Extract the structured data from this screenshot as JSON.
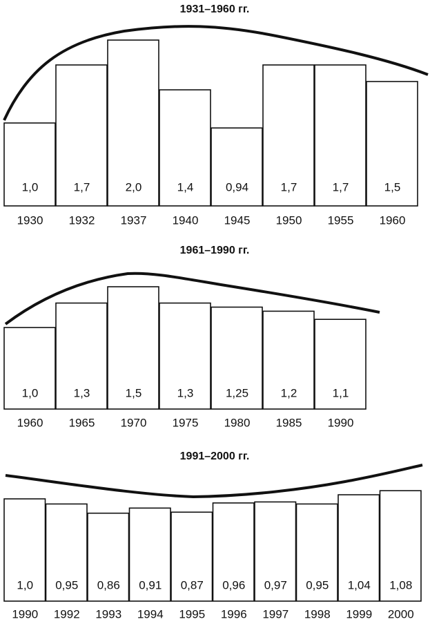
{
  "chart_data": [
    {
      "type": "bar",
      "title": "1931–1960 гг.",
      "categories": [
        "1930",
        "1932",
        "1937",
        "1940",
        "1945",
        "1950",
        "1955",
        "1960"
      ],
      "values": [
        1.0,
        1.7,
        2.0,
        1.4,
        0.94,
        1.7,
        1.7,
        1.5
      ],
      "value_labels": [
        "1,0",
        "1,7",
        "2,0",
        "1,4",
        "0,94",
        "1,7",
        "1,7",
        "1,5"
      ],
      "color": "#ffffff"
    },
    {
      "type": "bar",
      "title": "1961–1990 гг.",
      "categories": [
        "1960",
        "1965",
        "1970",
        "1975",
        "1980",
        "1985",
        "1990"
      ],
      "values": [
        1.0,
        1.3,
        1.5,
        1.3,
        1.25,
        1.2,
        1.1
      ],
      "value_labels": [
        "1,0",
        "1,3",
        "1,5",
        "1,3",
        "1,25",
        "1,2",
        "1,1"
      ],
      "color": "#ffffff"
    },
    {
      "type": "bar",
      "title": "1991–2000 гг.",
      "categories": [
        "1990",
        "1992",
        "1993",
        "1994",
        "1995",
        "1996",
        "1997",
        "1998",
        "1999",
        "2000"
      ],
      "values": [
        1.0,
        0.95,
        0.86,
        0.91,
        0.87,
        0.96,
        0.97,
        0.95,
        1.04,
        1.08
      ],
      "value_labels": [
        "1,0",
        "0,95",
        "0,86",
        "0,91",
        "0,87",
        "0,96",
        "0,97",
        "0,95",
        "1,04",
        "1,08"
      ],
      "color": "#ffffff"
    }
  ]
}
